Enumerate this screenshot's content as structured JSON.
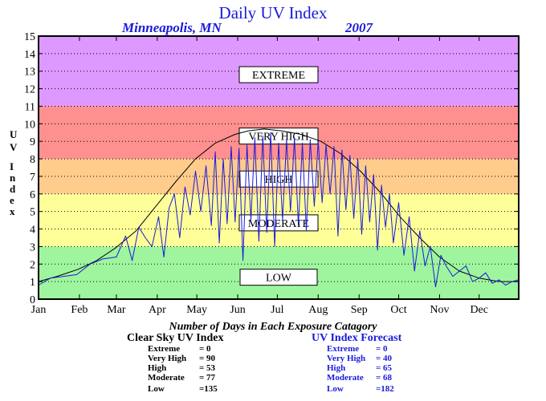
{
  "chart_data": {
    "type": "line",
    "title": "Daily UV Index",
    "location": "Minneapolis, MN",
    "year": "2007",
    "ylabel": "UV Index",
    "ylim": [
      0,
      15
    ],
    "yticks": [
      0,
      1,
      2,
      3,
      4,
      5,
      6,
      7,
      8,
      9,
      10,
      11,
      12,
      13,
      14,
      15
    ],
    "xlim": [
      1,
      365
    ],
    "months": [
      "Jan",
      "Feb",
      "Mar",
      "Apr",
      "May",
      "Jun",
      "Jul",
      "Aug",
      "Sep",
      "Oct",
      "Nov",
      "Dec"
    ],
    "grid": true,
    "bands": [
      {
        "label": "LOW",
        "from": 0,
        "to": 3,
        "color": "#9ef59e",
        "label_y": 1.25
      },
      {
        "label": "MODERATE",
        "from": 3,
        "to": 6,
        "color": "#ffff99",
        "label_y": 4.35
      },
      {
        "label": "HIGH",
        "from": 6,
        "to": 8,
        "color": "#ffcc8c",
        "label_y": 6.85
      },
      {
        "label": "VERY HIGH",
        "from": 8,
        "to": 11,
        "color": "#ff9090",
        "label_y": 9.3
      },
      {
        "label": "EXTREME",
        "from": 11,
        "to": 15,
        "color": "#dd99ff",
        "label_y": 12.8
      }
    ],
    "series": [
      {
        "name": "Clear Sky UV Index",
        "color": "#000000",
        "x": [
          1,
          15,
          31,
          45,
          59,
          75,
          90,
          105,
          120,
          135,
          150,
          160,
          172,
          185,
          200,
          215,
          230,
          245,
          260,
          275,
          290,
          305,
          320,
          335,
          350,
          365
        ],
        "y": [
          1.0,
          1.3,
          1.7,
          2.2,
          2.9,
          3.9,
          5.3,
          6.7,
          8.0,
          8.9,
          9.4,
          9.6,
          9.7,
          9.6,
          9.4,
          9.0,
          8.3,
          7.3,
          6.1,
          4.7,
          3.5,
          2.4,
          1.6,
          1.2,
          1.0,
          1.0
        ]
      },
      {
        "name": "UV Index Forecast",
        "color": "#1a1adb",
        "x": [
          1,
          10,
          20,
          30,
          40,
          50,
          60,
          67,
          72,
          77,
          82,
          87,
          92,
          96,
          100,
          104,
          108,
          112,
          116,
          120,
          124,
          128,
          132,
          135,
          138,
          141,
          144,
          147,
          150,
          153,
          156,
          159,
          162,
          165,
          168,
          171,
          174,
          177,
          180,
          183,
          186,
          189,
          192,
          195,
          198,
          201,
          204,
          207,
          210,
          213,
          216,
          219,
          222,
          225,
          228,
          231,
          234,
          237,
          240,
          243,
          246,
          249,
          252,
          255,
          258,
          261,
          264,
          267,
          270,
          274,
          278,
          282,
          286,
          290,
          294,
          298,
          302,
          306,
          310,
          315,
          320,
          325,
          330,
          335,
          340,
          345,
          350,
          355,
          360,
          365
        ],
        "y": [
          0.8,
          1.2,
          1.3,
          1.4,
          2.0,
          2.3,
          2.4,
          3.6,
          2.2,
          4.1,
          3.5,
          3.0,
          4.7,
          2.4,
          5.2,
          6.0,
          3.5,
          6.4,
          4.8,
          7.3,
          5.0,
          7.6,
          4.2,
          8.4,
          3.2,
          8.0,
          4.3,
          8.7,
          4.4,
          8.6,
          2.2,
          8.8,
          4.5,
          9.2,
          3.3,
          9.3,
          3.8,
          9.5,
          3.0,
          8.9,
          4.5,
          9.1,
          5.0,
          9.2,
          4.2,
          8.9,
          3.9,
          9.1,
          5.3,
          9.0,
          5.5,
          8.8,
          6.0,
          8.7,
          3.6,
          8.5,
          5.1,
          8.2,
          4.6,
          8.0,
          3.7,
          7.6,
          4.4,
          7.1,
          2.8,
          6.5,
          4.1,
          6.0,
          3.2,
          5.5,
          2.5,
          4.7,
          1.6,
          3.9,
          1.9,
          3.0,
          0.7,
          2.5,
          1.9,
          1.3,
          1.6,
          1.9,
          1.0,
          1.2,
          1.5,
          0.9,
          1.1,
          0.8,
          1.0,
          1.1
        ]
      }
    ]
  },
  "caption": "Number of Days in Each Exposure Catagory",
  "stats": {
    "clear": {
      "heading": "Clear Sky UV Index",
      "rows": [
        {
          "label": "Extreme",
          "value": "=   0"
        },
        {
          "label": "Very High",
          "value": "= 90"
        },
        {
          "label": "High",
          "value": "= 53"
        },
        {
          "label": "Moderate",
          "value": "= 77"
        },
        {
          "label": "Low",
          "value": "=135"
        }
      ]
    },
    "forecast": {
      "heading": "UV Index Forecast",
      "rows": [
        {
          "label": "Extreme",
          "value": "=   0"
        },
        {
          "label": "Very High",
          "value": "= 40"
        },
        {
          "label": "High",
          "value": "= 65"
        },
        {
          "label": "Moderate",
          "value": "= 68"
        },
        {
          "label": "Low",
          "value": "=182"
        }
      ]
    }
  }
}
